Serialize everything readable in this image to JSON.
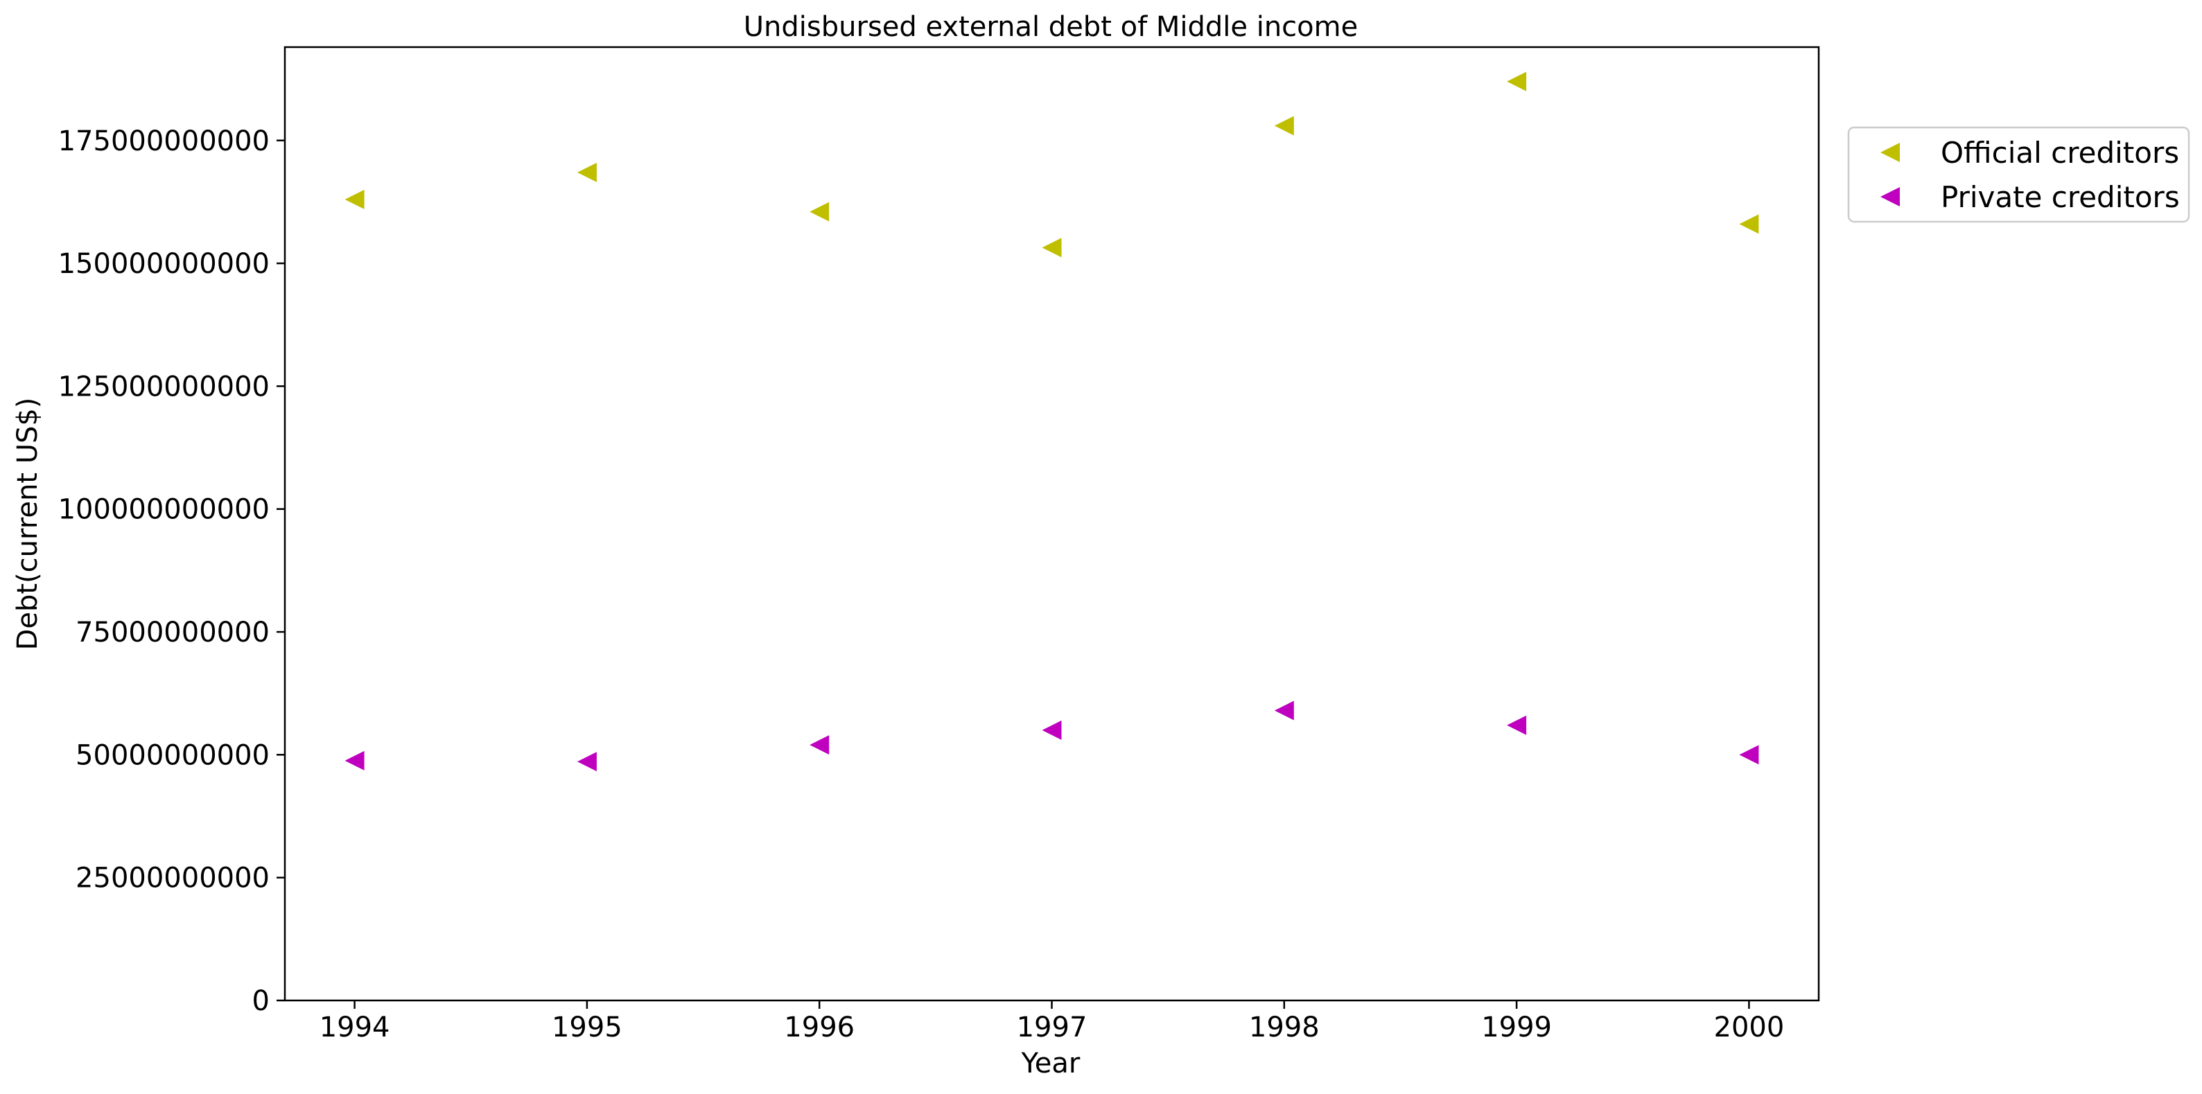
{
  "chart_data": {
    "type": "scatter",
    "title": "Undisbursed external debt of Middle income",
    "xlabel": "Year",
    "ylabel": "Debt(current US$)",
    "x": [
      1994,
      1995,
      1996,
      1997,
      1998,
      1999,
      2000
    ],
    "x_tick_labels": [
      "1994",
      "1995",
      "1996",
      "1997",
      "1998",
      "1999",
      "2000"
    ],
    "y_ticks": [
      0,
      25000000000,
      50000000000,
      75000000000,
      100000000000,
      125000000000,
      150000000000,
      175000000000
    ],
    "y_tick_labels": [
      "0",
      "25000000000",
      "50000000000",
      "75000000000",
      "100000000000",
      "125000000000",
      "150000000000",
      "175000000000"
    ],
    "xlim": [
      1993.7,
      2000.3
    ],
    "ylim": [
      0,
      194000000000
    ],
    "grid": false,
    "legend_position": "outside-right-top",
    "marker": "triangle-left",
    "series": [
      {
        "name": "Official creditors",
        "color": "#bfbf00",
        "values": [
          163000000000,
          168500000000,
          160500000000,
          153200000000,
          178000000000,
          187000000000,
          158000000000
        ]
      },
      {
        "name": "Private creditors",
        "color": "#bf00bf",
        "values": [
          48800000000,
          48600000000,
          52000000000,
          55000000000,
          59000000000,
          56000000000,
          50000000000
        ]
      }
    ]
  }
}
